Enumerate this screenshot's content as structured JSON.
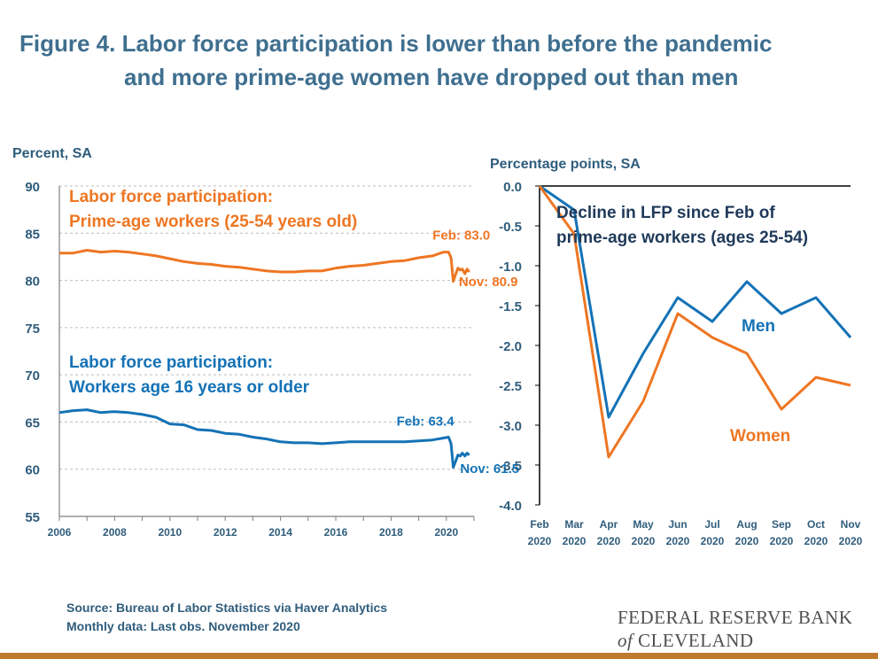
{
  "title": {
    "line1": "Figure 4. Labor force participation is lower than before the pandemic",
    "line2": "and more prime-age women have dropped out than men"
  },
  "colors": {
    "orange": "#ee7623",
    "blue": "#1472b6",
    "text": "#2f5d7c",
    "grid": "#bdbdbd"
  },
  "footer": {
    "source": "Source: Bureau of Labor Statistics via Haver Analytics",
    "note": "Monthly data: Last obs. November 2020",
    "logo_line1": "FEDERAL RESERVE BANK",
    "logo_of": "of",
    "logo_line2": "CLEVELAND"
  },
  "chart_data": [
    {
      "type": "line",
      "unit_label": "Percent, SA",
      "ylim": [
        55,
        90
      ],
      "xlim": [
        2006,
        2021
      ],
      "yticks": [
        "90",
        "85",
        "80",
        "75",
        "70",
        "65",
        "60",
        "55"
      ],
      "xticks": [
        "2006",
        "2008",
        "2010",
        "2012",
        "2014",
        "2016",
        "2018",
        "2020"
      ],
      "grid": true,
      "series": [
        {
          "name": "Labor force participation: Prime-age workers (25-54 years old)",
          "label_line1": "Labor force participation:",
          "label_line2": "Prime-age workers (25-54 years old)",
          "color": "#ee7623",
          "x": [
            2006.0,
            2006.5,
            2007.0,
            2007.5,
            2008.0,
            2008.5,
            2009.0,
            2009.5,
            2010.0,
            2010.5,
            2011.0,
            2011.5,
            2012.0,
            2012.5,
            2013.0,
            2013.5,
            2014.0,
            2014.5,
            2015.0,
            2015.5,
            2016.0,
            2016.5,
            2017.0,
            2017.5,
            2018.0,
            2018.5,
            2019.0,
            2019.5,
            2019.9,
            2020.08,
            2020.17,
            2020.25,
            2020.33,
            2020.42,
            2020.5,
            2020.58,
            2020.67,
            2020.75,
            2020.83
          ],
          "y": [
            82.9,
            82.9,
            83.2,
            83.0,
            83.1,
            83.0,
            82.8,
            82.6,
            82.3,
            82.0,
            81.8,
            81.7,
            81.5,
            81.4,
            81.2,
            81.0,
            80.9,
            80.9,
            81.0,
            81.0,
            81.3,
            81.5,
            81.6,
            81.8,
            82.0,
            82.1,
            82.4,
            82.6,
            83.0,
            83.0,
            82.4,
            79.9,
            80.6,
            81.3,
            81.1,
            81.2,
            80.7,
            81.2,
            80.9
          ]
        },
        {
          "name": "Labor force participation: Workers age 16 years or older",
          "label_line1": "Labor force participation:",
          "label_line2": "Workers age 16 years or older",
          "color": "#1472b6",
          "x": [
            2006.0,
            2006.5,
            2007.0,
            2007.5,
            2008.0,
            2008.5,
            2009.0,
            2009.5,
            2010.0,
            2010.5,
            2011.0,
            2011.5,
            2012.0,
            2012.5,
            2013.0,
            2013.5,
            2014.0,
            2014.5,
            2015.0,
            2015.5,
            2016.0,
            2016.5,
            2017.0,
            2017.5,
            2018.0,
            2018.5,
            2019.0,
            2019.5,
            2019.9,
            2020.08,
            2020.17,
            2020.25,
            2020.33,
            2020.42,
            2020.5,
            2020.58,
            2020.67,
            2020.75,
            2020.83
          ],
          "y": [
            66.0,
            66.2,
            66.3,
            66.0,
            66.1,
            66.0,
            65.8,
            65.5,
            64.8,
            64.7,
            64.2,
            64.1,
            63.8,
            63.7,
            63.4,
            63.2,
            62.9,
            62.8,
            62.8,
            62.7,
            62.8,
            62.9,
            62.9,
            62.9,
            62.9,
            62.9,
            63.0,
            63.1,
            63.3,
            63.4,
            62.7,
            60.2,
            60.8,
            61.5,
            61.4,
            61.7,
            61.4,
            61.7,
            61.5
          ]
        }
      ],
      "annotations": [
        {
          "text": "Feb: 83.0",
          "series": 0,
          "x": 2019.5,
          "y": 84.3
        },
        {
          "text": "Nov: 80.9",
          "series": 0,
          "x": 2020.45,
          "y": 79.4
        },
        {
          "text": "Feb: 63.4",
          "series": 1,
          "x": 2018.2,
          "y": 64.6
        },
        {
          "text": "Nov: 61.5",
          "series": 1,
          "x": 2020.5,
          "y": 59.6
        }
      ]
    },
    {
      "type": "line",
      "unit_label": "Percentage points,  SA",
      "title_line1": "Decline in LFP since Feb of",
      "title_line2": "prime-age workers (ages 25-54)",
      "ylim": [
        -4.0,
        0.0
      ],
      "yticks": [
        "0.0",
        "-0.5",
        "-1.0",
        "-1.5",
        "-2.0",
        "-2.5",
        "-3.0",
        "-3.5",
        "-4.0"
      ],
      "categories": [
        "Feb 2020",
        "Mar 2020",
        "Apr 2020",
        "May 2020",
        "Jun 2020",
        "Jul 2020",
        "Aug 2020",
        "Sep 2020",
        "Oct 2020",
        "Nov 2020"
      ],
      "x_month": [
        "Feb",
        "Mar",
        "Apr",
        "May",
        "Jun",
        "Jul",
        "Aug",
        "Sep",
        "Oct",
        "Nov"
      ],
      "x_year": [
        "2020",
        "2020",
        "2020",
        "2020",
        "2020",
        "2020",
        "2020",
        "2020",
        "2020",
        "2020"
      ],
      "series": [
        {
          "name": "Men",
          "color": "#1472b6",
          "values": [
            0.0,
            -0.3,
            -2.9,
            -2.1,
            -1.4,
            -1.7,
            -1.2,
            -1.6,
            -1.4,
            -1.9
          ]
        },
        {
          "name": "Women",
          "color": "#ee7623",
          "values": [
            0.0,
            -0.6,
            -3.4,
            -2.7,
            -1.6,
            -1.9,
            -2.1,
            -2.8,
            -2.4,
            -2.5
          ]
        }
      ]
    }
  ]
}
